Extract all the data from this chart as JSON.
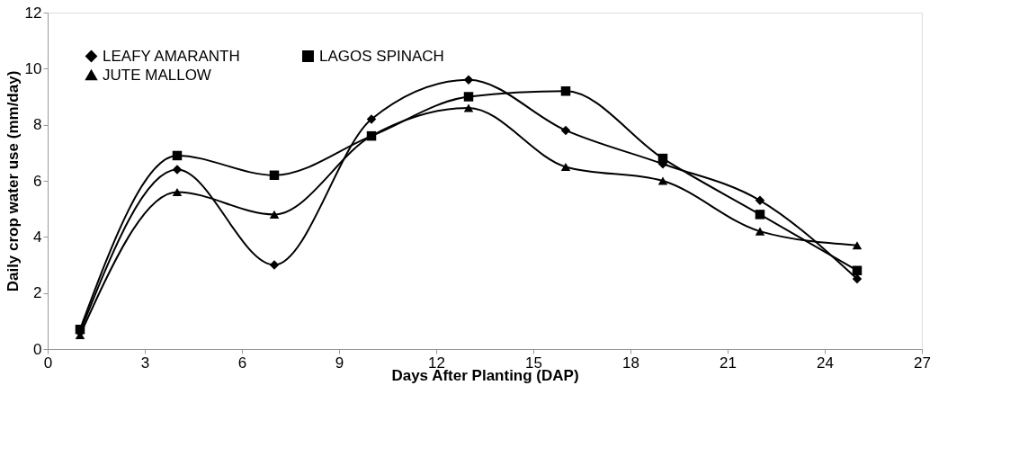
{
  "chart_data": {
    "type": "line",
    "xlabel": "Days After Planting (DAP)",
    "ylabel": "Daily crop water use (mm/day)",
    "x": [
      1,
      4,
      7,
      10,
      13,
      16,
      19,
      22,
      25
    ],
    "series": [
      {
        "name": "LEAFY  AMARANTH",
        "color": "#000000",
        "marker": "diamond",
        "values": [
          0.6,
          6.4,
          3.0,
          8.2,
          9.6,
          7.8,
          6.6,
          5.3,
          2.5
        ]
      },
      {
        "name": "LAGOS SPINACH",
        "color": "#000000",
        "marker": "square",
        "values": [
          0.7,
          6.9,
          6.2,
          7.6,
          9.0,
          9.2,
          6.8,
          4.8,
          2.8
        ]
      },
      {
        "name": "JUTE MALLOW",
        "color": "#000000",
        "marker": "triangle",
        "values": [
          0.5,
          5.6,
          4.8,
          7.6,
          8.6,
          6.5,
          6.0,
          4.2,
          3.7
        ]
      }
    ],
    "xlim": [
      0,
      27
    ],
    "xticks": [
      0,
      3,
      6,
      9,
      12,
      15,
      18,
      21,
      24,
      27
    ],
    "ylim": [
      0,
      12
    ],
    "yticks": [
      0,
      2,
      4,
      6,
      8,
      10,
      12
    ],
    "grid": false,
    "legend": "top left",
    "line_style": "solid"
  }
}
